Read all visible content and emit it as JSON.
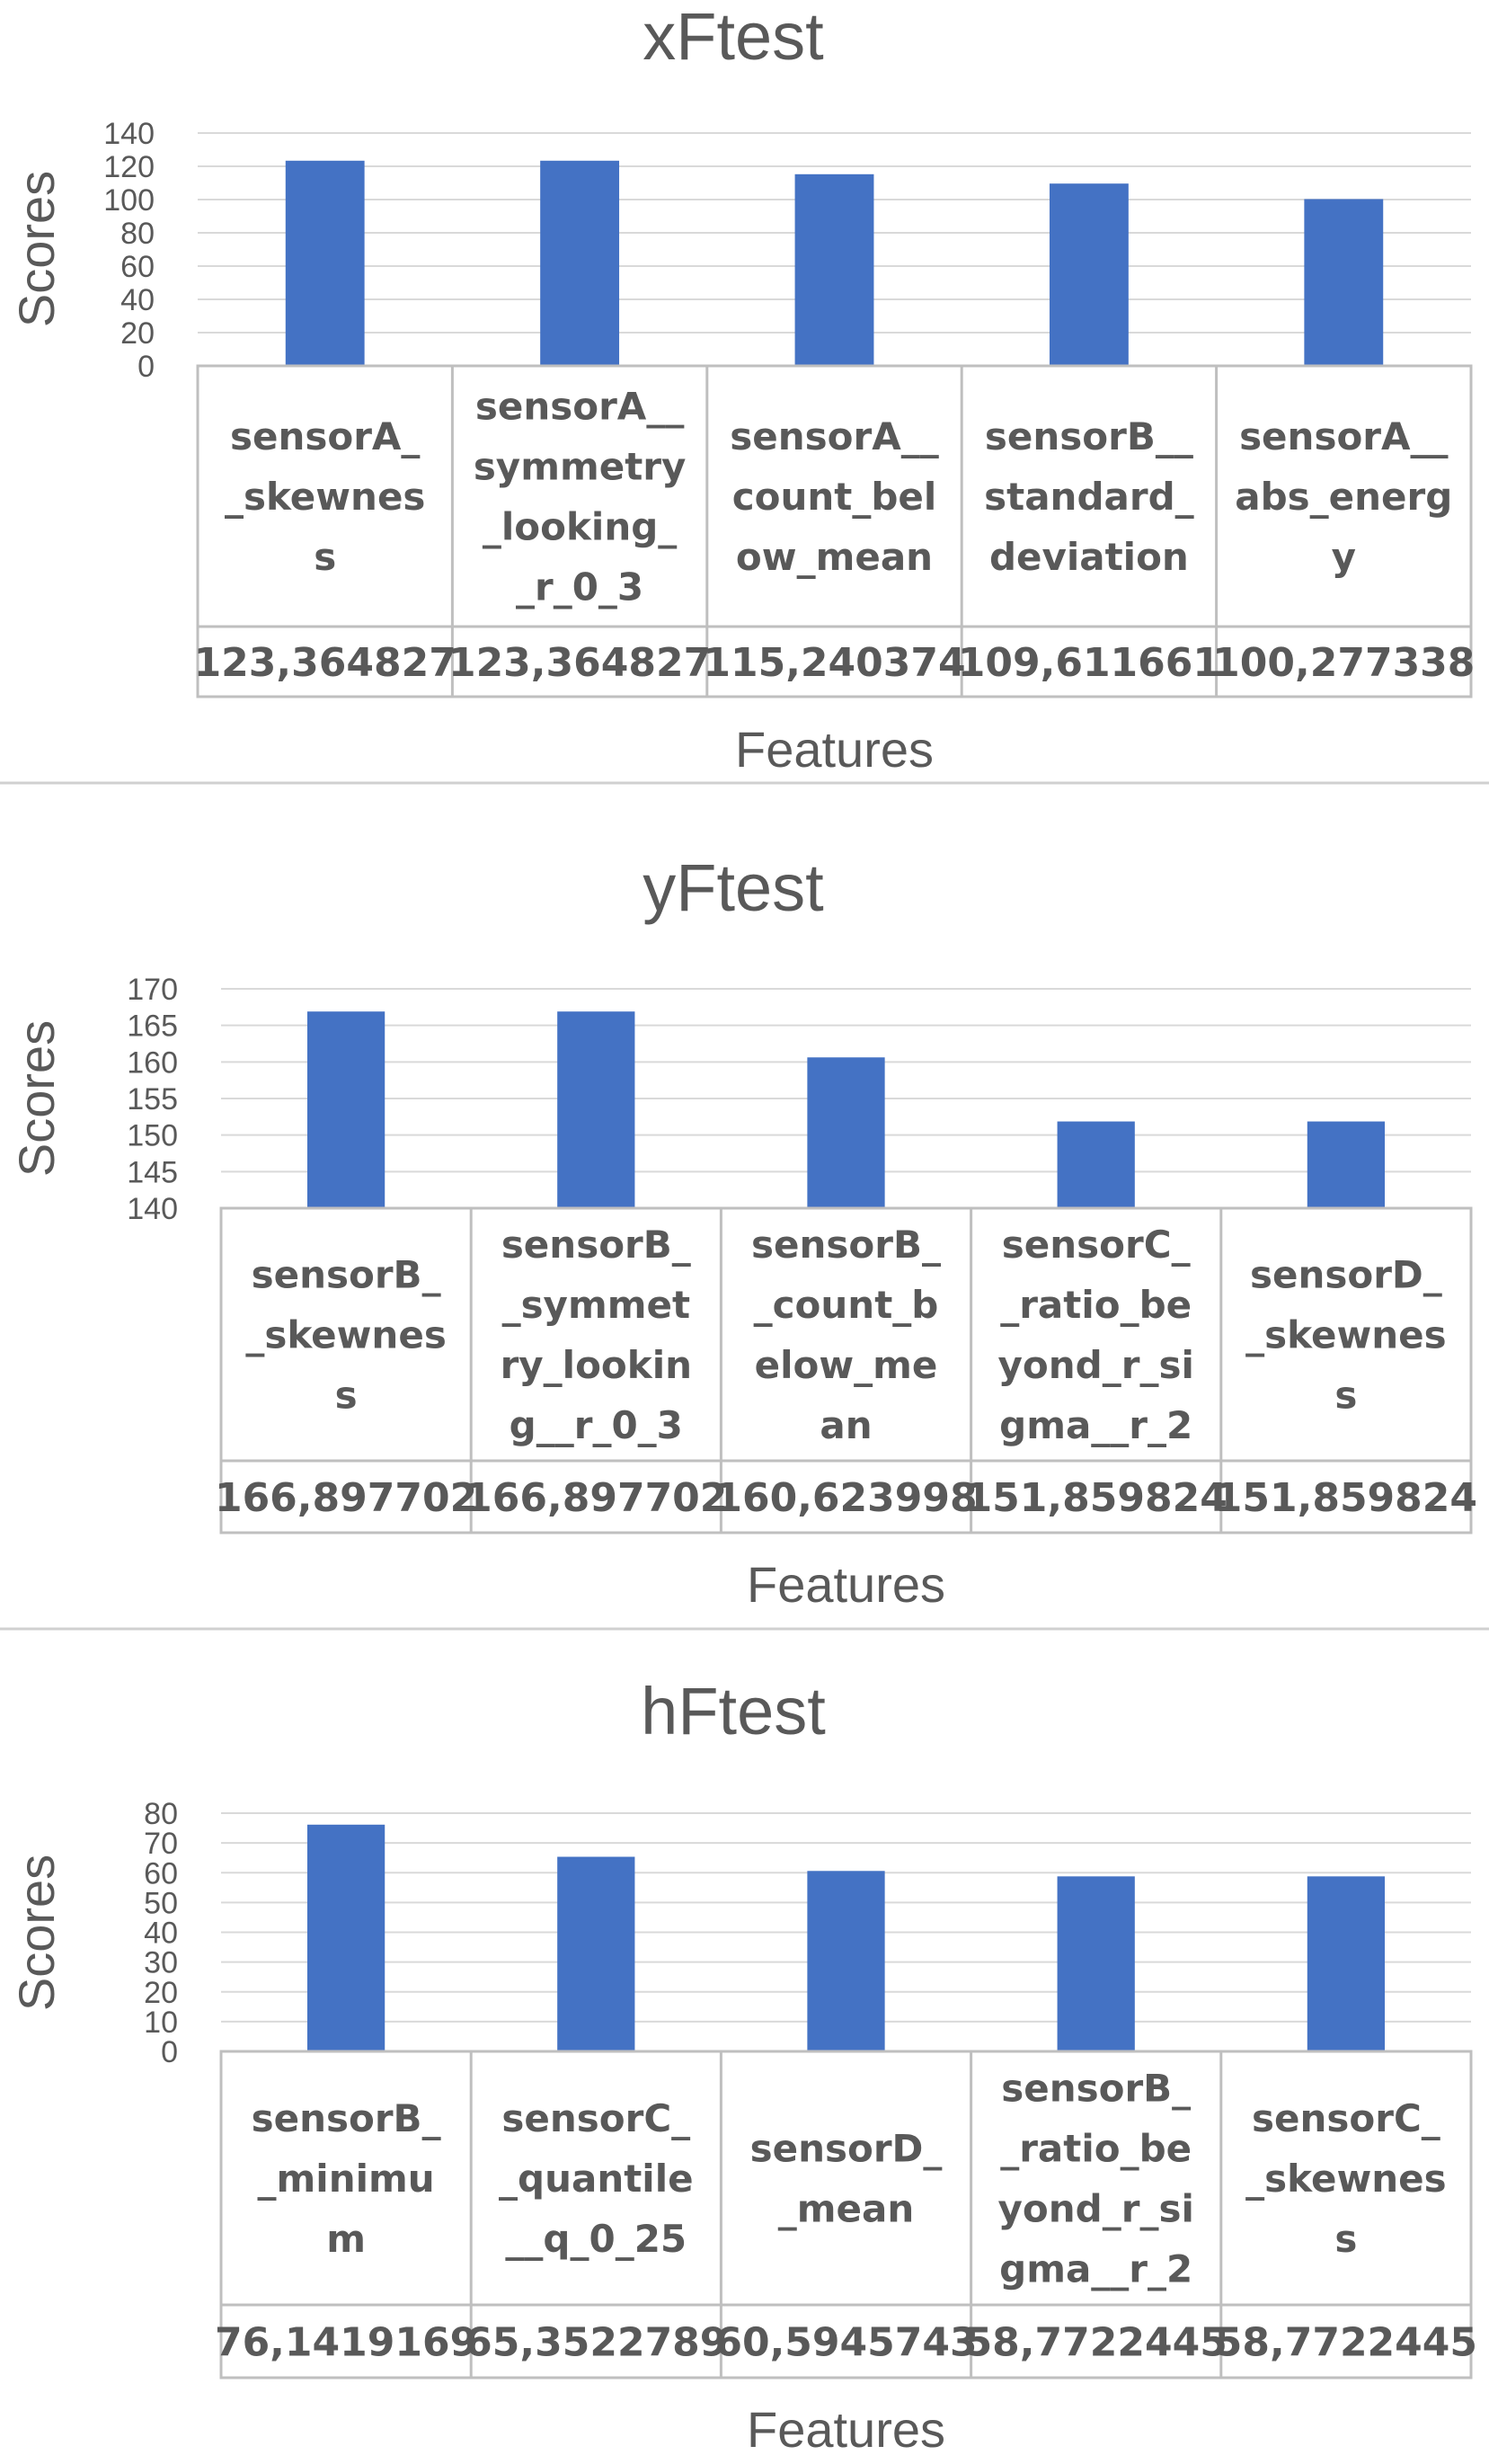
{
  "chart_data": [
    {
      "type": "bar",
      "title": "xFtest",
      "xlabel": "Features",
      "ylabel": "Scores",
      "ylim": [
        0,
        140
      ],
      "yticks": [
        0,
        20,
        40,
        60,
        80,
        100,
        120,
        140
      ],
      "categories": [
        [
          "sensorA_",
          "_skewnes",
          "s"
        ],
        [
          "sensorA__",
          "symmetry",
          "_looking_",
          "_r_0_3"
        ],
        [
          "sensorA__",
          "count_bel",
          "ow_mean"
        ],
        [
          "sensorB__",
          "standard_",
          "deviation"
        ],
        [
          "sensorA__",
          "abs_energ",
          "y"
        ]
      ],
      "values": [
        123.364827,
        123.364827,
        115.240374,
        109.611661,
        100.277338
      ],
      "value_labels": [
        "123,364827",
        "123,364827",
        "115,240374",
        "109,611661",
        "100,277338"
      ],
      "bar_color": "#4472C4",
      "grid": true
    },
    {
      "type": "bar",
      "title": "yFtest",
      "xlabel": "Features",
      "ylabel": "Scores",
      "ylim": [
        140,
        170
      ],
      "yticks": [
        140,
        145,
        150,
        155,
        160,
        165,
        170
      ],
      "categories": [
        [
          "sensorB_",
          "_skewnes",
          "s"
        ],
        [
          "sensorB_",
          "_symmet",
          "ry_lookin",
          "g__r_0_3"
        ],
        [
          "sensorB_",
          "_count_b",
          "elow_me",
          "an"
        ],
        [
          "sensorC_",
          "_ratio_be",
          "yond_r_si",
          "gma__r_2"
        ],
        [
          "sensorD_",
          "_skewnes",
          "s"
        ]
      ],
      "values": [
        166.897702,
        166.897702,
        160.623998,
        151.859824,
        151.859824
      ],
      "value_labels": [
        "166,897702",
        "166,897702",
        "160,623998",
        "151,859824",
        "151,859824"
      ],
      "bar_color": "#4472C4",
      "grid": true
    },
    {
      "type": "bar",
      "title": "hFtest",
      "xlabel": "Features",
      "ylabel": "Scores",
      "ylim": [
        0,
        80
      ],
      "yticks": [
        0,
        10,
        20,
        30,
        40,
        50,
        60,
        70,
        80
      ],
      "categories": [
        [
          "sensorB_",
          "_minimu",
          "m"
        ],
        [
          "sensorC_",
          "_quantile",
          "__q_0_25"
        ],
        [
          "sensorD_",
          "_mean"
        ],
        [
          "sensorB_",
          "_ratio_be",
          "yond_r_si",
          "gma__r_2"
        ],
        [
          "sensorC_",
          "_skewnes",
          "s"
        ]
      ],
      "values": [
        76.1419169,
        65.3522789,
        60.5945743,
        58.7722445,
        58.7722445
      ],
      "value_labels": [
        "76,1419169",
        "65,3522789",
        "60,5945743",
        "58,7722445",
        "58,7722445"
      ],
      "bar_color": "#4472C4",
      "grid": true
    }
  ]
}
